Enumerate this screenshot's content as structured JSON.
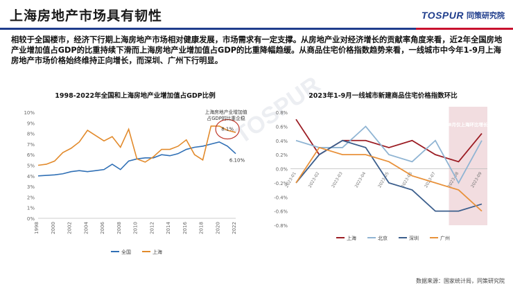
{
  "header": {
    "title": "上海房地产市场具有韧性",
    "logo_brand": "TOSPUR",
    "logo_cn": "同策研究院"
  },
  "paragraph": "相较于全国楼市，经济下行期上海房地产市场相对健康发展，市场需求有一定支撑。从房地产业对经济增长的贡献率角度来看，近2年全国房地产业增加值占GDP的比重持续下滑而上海房地产业增加值占GDP的比重降幅趋缓。从商品住宅价格指数趋势来看，一线城市中今年1-9月上海房地产市场价格始终维持正向增长，而深圳、广州下行明显。",
  "source": "数据来源：国家统计局，同策研究院",
  "watermark": "TOSPUR",
  "colors": {
    "blue": "#2f6fb5",
    "orange": "#e28a2b",
    "shanghai": "#9b1c23",
    "beijing": "#8fb4d3",
    "shenzhen": "#3b5e8c",
    "guangzhou": "#e8913a",
    "highlight": "#c0392b"
  },
  "chart_data": [
    {
      "type": "line",
      "title": "1998-2022年全国和上海房地产业增加值占GDP比例",
      "x": [
        1998,
        1999,
        2000,
        2001,
        2002,
        2003,
        2004,
        2005,
        2006,
        2007,
        2008,
        2009,
        2010,
        2011,
        2012,
        2013,
        2014,
        2015,
        2016,
        2017,
        2018,
        2019,
        2020,
        2021,
        2022
      ],
      "xticks": [
        "1998",
        "2000",
        "2002",
        "2004",
        "2006",
        "2008",
        "2010",
        "2012",
        "2014",
        "2016",
        "2018",
        "2020",
        "2022"
      ],
      "yticks": [
        "0%",
        "1%",
        "2%",
        "3%",
        "4%",
        "5%",
        "6%",
        "7%",
        "8%",
        "9%",
        "10%"
      ],
      "ylim": [
        0,
        10
      ],
      "series": [
        {
          "name": "全国",
          "values": [
            4.0,
            4.05,
            4.1,
            4.2,
            4.4,
            4.5,
            4.4,
            4.5,
            4.6,
            5.1,
            4.6,
            5.4,
            5.6,
            5.7,
            5.7,
            6.0,
            5.9,
            6.1,
            6.5,
            6.7,
            6.8,
            7.0,
            7.2,
            6.8,
            6.1
          ]
        },
        {
          "name": "上海",
          "values": [
            5.0,
            5.1,
            5.4,
            6.2,
            6.6,
            7.2,
            8.3,
            7.8,
            7.3,
            7.7,
            6.7,
            8.4,
            5.6,
            5.3,
            5.8,
            6.5,
            6.5,
            6.8,
            7.4,
            6.0,
            5.5,
            8.7,
            8.7,
            8.3,
            8.1
          ]
        }
      ],
      "annotations": {
        "callout": "上海房地产业增加值占GDP的比重企稳",
        "label_sh": "8.1%",
        "label_cn": "6.10%"
      }
    },
    {
      "type": "line",
      "title": "2023年1-9月一线城市新建商品住宅价格指数环比",
      "x": [
        "2023-01",
        "2023-02",
        "2023-03",
        "2023-04",
        "2023-05",
        "2023-06",
        "2023-07",
        "2023-08",
        "2023-09"
      ],
      "xticks": [
        "2023-01",
        "2023-02",
        "2023-03",
        "2023-04",
        "2023-05",
        "2023-06",
        "2023-07",
        "2023-08",
        "2023-09"
      ],
      "yticks": [
        "-0.8%",
        "-0.6%",
        "-0.4%",
        "-0.2%",
        "0.0%",
        "0.2%",
        "0.4%",
        "0.6%",
        "0.8%"
      ],
      "ylim": [
        -0.8,
        0.8
      ],
      "series": [
        {
          "name": "上海",
          "values": [
            0.7,
            0.2,
            0.4,
            0.4,
            0.3,
            0.4,
            0.2,
            0.1,
            0.5
          ]
        },
        {
          "name": "北京",
          "values": [
            0.4,
            0.3,
            0.3,
            0.6,
            0.2,
            0.1,
            0.4,
            -0.2,
            0.4
          ]
        },
        {
          "name": "深圳",
          "values": [
            -0.2,
            0.2,
            0.4,
            0.3,
            -0.2,
            -0.3,
            -0.6,
            -0.6,
            -0.5
          ]
        },
        {
          "name": "广州",
          "values": [
            -0.2,
            0.3,
            0.2,
            0.2,
            0.1,
            -0.1,
            -0.2,
            -0.3,
            -0.6
          ]
        }
      ],
      "annotations": {
        "highlight_label": "8月仅上海环比增长"
      }
    }
  ]
}
